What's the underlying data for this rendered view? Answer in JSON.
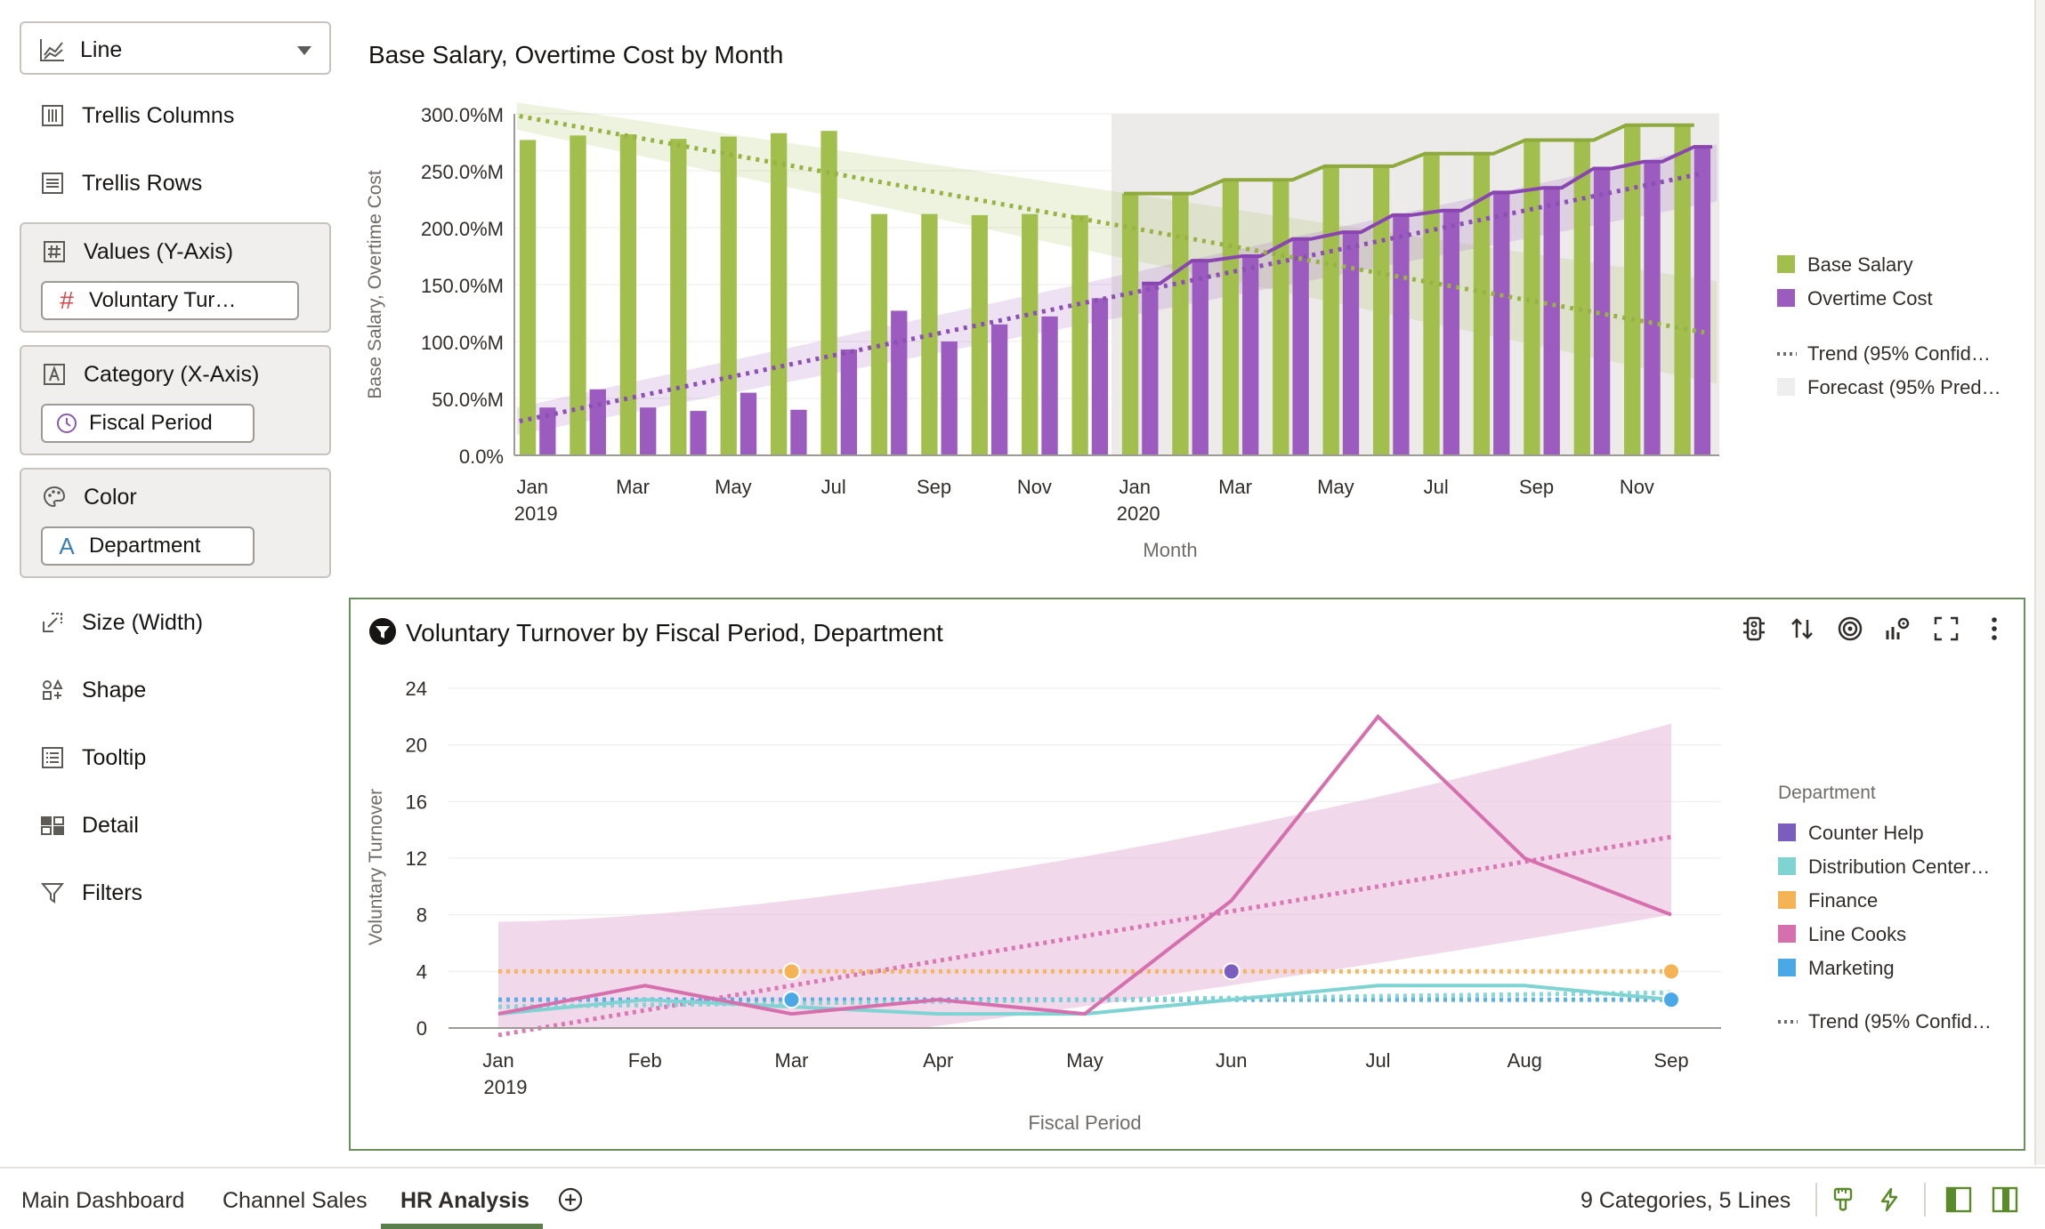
{
  "left_panel": {
    "chart_type": {
      "label": "Line",
      "icon": "line-chart-icon"
    },
    "rows": [
      {
        "id": "trellis-columns",
        "label": "Trellis Columns",
        "icon": "trellis-columns-icon"
      },
      {
        "id": "trellis-rows",
        "label": "Trellis Rows",
        "icon": "trellis-rows-icon"
      }
    ],
    "values_box": {
      "label": "Values (Y-Axis)",
      "icon": "hash-icon",
      "pill": "Voluntary Tur…",
      "pill_icon": "#"
    },
    "category_box": {
      "label": "Category (X-Axis)",
      "icon": "text-field-icon",
      "pill": "Fiscal Period",
      "pill_icon": "clock-icon"
    },
    "color_box": {
      "label": "Color",
      "icon": "palette-icon",
      "pill": "Department",
      "pill_icon": "A"
    },
    "extra_rows": [
      {
        "id": "size",
        "label": "Size (Width)",
        "icon": "size-icon"
      },
      {
        "id": "shape",
        "label": "Shape",
        "icon": "shape-icon"
      },
      {
        "id": "tooltip",
        "label": "Tooltip",
        "icon": "tooltip-icon"
      },
      {
        "id": "detail",
        "label": "Detail",
        "icon": "detail-icon"
      },
      {
        "id": "filters",
        "label": "Filters",
        "icon": "filter-icon"
      }
    ]
  },
  "chart_data": [
    {
      "type": "bar",
      "title": "Base Salary, Overtime Cost by Month",
      "xlabel": "Month",
      "ylabel": "Base Salary, Overtime Cost",
      "ylim": [
        0,
        300
      ],
      "yticks": [
        "0.0%",
        "50.0%M",
        "100.0%M",
        "150.0%M",
        "200.0%M",
        "250.0%M",
        "300.0%M"
      ],
      "categories": [
        "2019-01",
        "2019-02",
        "2019-03",
        "2019-04",
        "2019-05",
        "2019-06",
        "2019-07",
        "2019-08",
        "2019-09",
        "2019-10",
        "2019-11",
        "2019-12",
        "2020-01",
        "2020-02",
        "2020-03",
        "2020-04",
        "2020-05",
        "2020-06",
        "2020-07",
        "2020-08",
        "2020-09",
        "2020-10",
        "2020-11",
        "2020-12"
      ],
      "xtick_labels": [
        {
          "index": 0,
          "text": "Jan",
          "sub": "2019"
        },
        {
          "index": 2,
          "text": "Mar"
        },
        {
          "index": 4,
          "text": "May"
        },
        {
          "index": 6,
          "text": "Jul"
        },
        {
          "index": 8,
          "text": "Sep"
        },
        {
          "index": 10,
          "text": "Nov"
        },
        {
          "index": 12,
          "text": "Jan",
          "sub": "2020"
        },
        {
          "index": 14,
          "text": "Mar"
        },
        {
          "index": 16,
          "text": "May"
        },
        {
          "index": 18,
          "text": "Jul"
        },
        {
          "index": 20,
          "text": "Sep"
        },
        {
          "index": 22,
          "text": "Nov"
        }
      ],
      "forecast_start_index": 12,
      "series": [
        {
          "name": "Base Salary",
          "color": "#a2bf4d",
          "values": [
            277,
            281,
            282,
            278,
            280,
            283,
            285,
            212,
            212,
            211,
            212,
            211,
            230,
            230,
            242,
            242,
            254,
            254,
            265,
            265,
            277,
            277,
            290,
            290
          ]
        },
        {
          "name": "Overtime Cost",
          "color": "#9b5bbf",
          "values": [
            42,
            58,
            42,
            39,
            55,
            40,
            93,
            127,
            100,
            115,
            122,
            138,
            151,
            171,
            175,
            190,
            196,
            211,
            215,
            231,
            235,
            252,
            258,
            271
          ]
        }
      ],
      "trends": [
        {
          "color": "#a2bf4d",
          "start": 298,
          "end": 108
        },
        {
          "color": "#9b5bbf",
          "start": 30,
          "end": 248
        }
      ],
      "legend": [
        {
          "label": "Base Salary",
          "color": "#a2bf4d",
          "kind": "swatch"
        },
        {
          "label": "Overtime Cost",
          "color": "#9b5bbf",
          "kind": "swatch"
        },
        {
          "label": "Trend (95% Confid…",
          "color": "#6b6b6b",
          "kind": "dotted"
        },
        {
          "label": "Forecast (95% Pred…",
          "color": "#eeeeee",
          "kind": "swatch"
        }
      ]
    },
    {
      "type": "line",
      "title": "Voluntary Turnover by Fiscal Period, Department",
      "xlabel": "Fiscal Period",
      "ylabel": "Voluntary Turnover",
      "ylim": [
        0,
        24
      ],
      "yticks": [
        0,
        4,
        8,
        12,
        16,
        20,
        24
      ],
      "categories": [
        "Jan",
        "Feb",
        "Mar",
        "Apr",
        "May",
        "Jun",
        "Jul",
        "Aug",
        "Sep"
      ],
      "first_sub": "2019",
      "legend_title": "Department",
      "series": [
        {
          "name": "Counter Help",
          "color": "#7b5cbf",
          "values": [
            null,
            null,
            null,
            null,
            null,
            4,
            null,
            null,
            null
          ]
        },
        {
          "name": "Distribution Center…",
          "color": "#7fd3d3",
          "values": [
            1,
            2,
            1.5,
            1,
            1,
            2,
            3,
            3,
            2
          ]
        },
        {
          "name": "Finance",
          "color": "#f4b355",
          "values": [
            null,
            null,
            4,
            null,
            null,
            null,
            null,
            null,
            4
          ]
        },
        {
          "name": "Line Cooks",
          "color": "#d66fae",
          "values": [
            1,
            3,
            1,
            2,
            1,
            9,
            22,
            12,
            8
          ]
        },
        {
          "name": "Marketing",
          "color": "#4aa8e6",
          "values": [
            null,
            null,
            2,
            null,
            null,
            null,
            null,
            null,
            2
          ]
        }
      ],
      "trends": [
        {
          "color": "#d66fae",
          "start": -0.5,
          "end": 13.5
        },
        {
          "color": "#f4b355",
          "start": 4,
          "end": 4
        },
        {
          "color": "#4aa8e6",
          "start": 2,
          "end": 2
        },
        {
          "color": "#7fd3d3",
          "start": 1.5,
          "end": 2.5
        }
      ],
      "band": {
        "color": "#ebc3e0",
        "lower_start": 0,
        "lower_end": 8,
        "upper_start": 7.5,
        "upper_end": 21.5
      },
      "legend": [
        {
          "label": "Counter Help",
          "color": "#7b5cbf",
          "kind": "swatch"
        },
        {
          "label": "Distribution Center…",
          "color": "#7fd3d3",
          "kind": "swatch"
        },
        {
          "label": "Finance",
          "color": "#f4b355",
          "kind": "swatch"
        },
        {
          "label": "Line Cooks",
          "color": "#d66fae",
          "kind": "swatch"
        },
        {
          "label": "Marketing",
          "color": "#4aa8e6",
          "kind": "swatch"
        },
        {
          "label": "Trend (95% Confid…",
          "color": "#6b6b6b",
          "kind": "dotted"
        }
      ]
    }
  ],
  "bottom_toolbar": [
    "auto-insights-icon",
    "sort-icon",
    "target-icon",
    "analytics-icon",
    "fullscreen-icon",
    "more-icon"
  ],
  "tabs": [
    {
      "label": "Main Dashboard",
      "active": false
    },
    {
      "label": "Channel Sales",
      "active": false
    },
    {
      "label": "HR Analysis",
      "active": true
    }
  ],
  "status": {
    "summary": "9 Categories, 5 Lines"
  }
}
